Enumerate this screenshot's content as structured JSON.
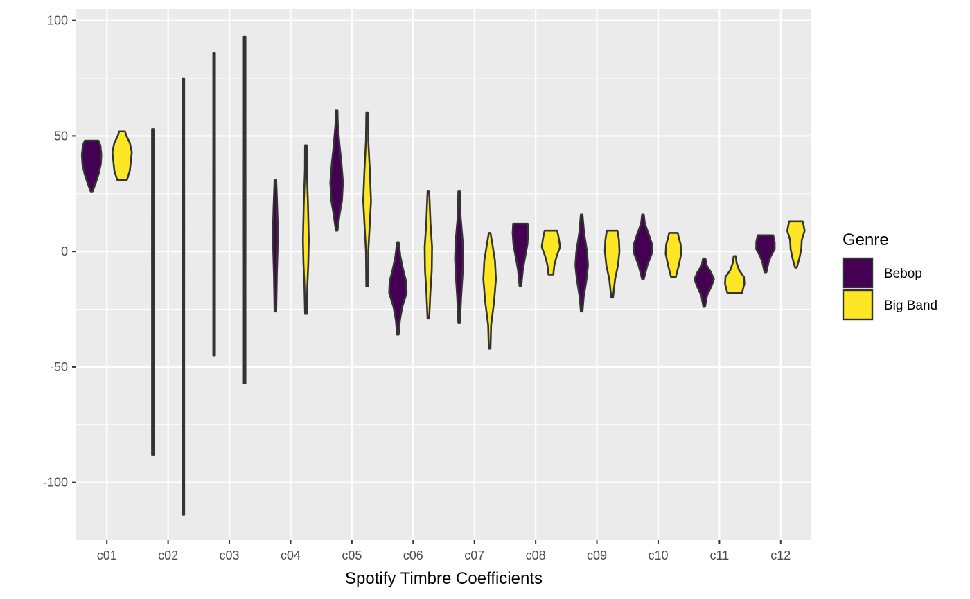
{
  "colors": {
    "panel_background": "#ebebeb",
    "grid_line": "#ffffff",
    "outline": "#333333",
    "tick_text": "#4d4d4d"
  },
  "chart_data": {
    "type": "violin",
    "title": "",
    "xlabel": "Spotify Timbre Coefficients",
    "ylabel": "",
    "ylim": [
      -125,
      105
    ],
    "y_ticks": [
      -100,
      -50,
      0,
      50,
      100
    ],
    "y_tick_labels": [
      "-100",
      "-50",
      "0",
      "50",
      "100"
    ],
    "grid": true,
    "legend_position": "right",
    "categories": [
      "c01",
      "c02",
      "c03",
      "c04",
      "c05",
      "c06",
      "c07",
      "c08",
      "c09",
      "c10",
      "c11",
      "c12"
    ],
    "legend": {
      "title": "Genre",
      "entries": [
        {
          "label": "Bebop",
          "color": "#440154"
        },
        {
          "label": "Big Band",
          "color": "#fde725"
        }
      ]
    },
    "series": [
      {
        "name": "Bebop",
        "color": "#440154",
        "violins": [
          {
            "category": "c01",
            "profile": [
              [
                26,
                0.1
              ],
              [
                30,
                0.45
              ],
              [
                34,
                0.75
              ],
              [
                38,
                0.95
              ],
              [
                42,
                1.0
              ],
              [
                46,
                0.9
              ],
              [
                48,
                0.7
              ]
            ]
          },
          {
            "category": "c02",
            "profile": [
              [
                -88,
                0.05
              ],
              [
                -50,
                0.07
              ],
              [
                -10,
                0.08
              ],
              [
                10,
                0.09
              ],
              [
                30,
                0.07
              ],
              [
                53,
                0.05
              ]
            ]
          },
          {
            "category": "c03",
            "profile": [
              [
                -45,
                0.05
              ],
              [
                -10,
                0.07
              ],
              [
                20,
                0.09
              ],
              [
                50,
                0.08
              ],
              [
                86,
                0.05
              ]
            ]
          },
          {
            "category": "c04",
            "profile": [
              [
                -26,
                0.05
              ],
              [
                -10,
                0.15
              ],
              [
                0,
                0.22
              ],
              [
                10,
                0.25
              ],
              [
                20,
                0.18
              ],
              [
                31,
                0.06
              ]
            ]
          },
          {
            "category": "c05",
            "profile": [
              [
                9,
                0.08
              ],
              [
                16,
                0.3
              ],
              [
                22,
                0.55
              ],
              [
                30,
                0.65
              ],
              [
                38,
                0.5
              ],
              [
                46,
                0.3
              ],
              [
                55,
                0.12
              ],
              [
                61,
                0.05
              ]
            ]
          },
          {
            "category": "c06",
            "profile": [
              [
                -36,
                0.08
              ],
              [
                -30,
                0.2
              ],
              [
                -24,
                0.45
              ],
              [
                -18,
                0.9
              ],
              [
                -13,
                0.85
              ],
              [
                -8,
                0.55
              ],
              [
                -2,
                0.25
              ],
              [
                4,
                0.08
              ]
            ]
          },
          {
            "category": "c07",
            "profile": [
              [
                -31,
                0.06
              ],
              [
                -20,
                0.2
              ],
              [
                -10,
                0.35
              ],
              [
                -3,
                0.42
              ],
              [
                5,
                0.35
              ],
              [
                15,
                0.15
              ],
              [
                26,
                0.05
              ]
            ]
          },
          {
            "category": "c08",
            "profile": [
              [
                -15,
                0.06
              ],
              [
                -8,
                0.25
              ],
              [
                -2,
                0.5
              ],
              [
                3,
                0.72
              ],
              [
                8,
                0.8
              ],
              [
                12,
                0.75
              ]
            ]
          },
          {
            "category": "c09",
            "profile": [
              [
                -26,
                0.08
              ],
              [
                -20,
                0.2
              ],
              [
                -12,
                0.5
              ],
              [
                -6,
                0.65
              ],
              [
                0,
                0.55
              ],
              [
                8,
                0.25
              ],
              [
                16,
                0.06
              ]
            ]
          },
          {
            "category": "c10",
            "profile": [
              [
                -12,
                0.08
              ],
              [
                -6,
                0.45
              ],
              [
                -1,
                0.9
              ],
              [
                3,
                0.95
              ],
              [
                8,
                0.55
              ],
              [
                12,
                0.2
              ],
              [
                16,
                0.05
              ]
            ]
          },
          {
            "category": "c11",
            "profile": [
              [
                -24,
                0.05
              ],
              [
                -19,
                0.3
              ],
              [
                -15,
                0.75
              ],
              [
                -12,
                1.0
              ],
              [
                -9,
                0.7
              ],
              [
                -6,
                0.25
              ],
              [
                -3,
                0.12
              ]
            ]
          },
          {
            "category": "c12",
            "profile": [
              [
                -9,
                0.1
              ],
              [
                -5,
                0.3
              ],
              [
                -2,
                0.55
              ],
              [
                1,
                0.95
              ],
              [
                4,
                0.95
              ],
              [
                7,
                0.8
              ]
            ]
          }
        ]
      },
      {
        "name": "Big Band",
        "color": "#fde725",
        "violins": [
          {
            "category": "c01",
            "profile": [
              [
                31,
                0.5
              ],
              [
                35,
                0.8
              ],
              [
                39,
                0.9
              ],
              [
                43,
                1.0
              ],
              [
                47,
                0.8
              ],
              [
                50,
                0.45
              ],
              [
                52,
                0.3
              ]
            ]
          },
          {
            "category": "c02",
            "profile": [
              [
                -114,
                0.05
              ],
              [
                -60,
                0.07
              ],
              [
                -20,
                0.08
              ],
              [
                10,
                0.09
              ],
              [
                40,
                0.07
              ],
              [
                75,
                0.05
              ]
            ]
          },
          {
            "category": "c03",
            "profile": [
              [
                -57,
                0.05
              ],
              [
                -20,
                0.07
              ],
              [
                20,
                0.09
              ],
              [
                60,
                0.08
              ],
              [
                93,
                0.05
              ]
            ]
          },
          {
            "category": "c04",
            "profile": [
              [
                -27,
                0.05
              ],
              [
                -15,
                0.15
              ],
              [
                -5,
                0.25
              ],
              [
                5,
                0.3
              ],
              [
                20,
                0.22
              ],
              [
                35,
                0.1
              ],
              [
                46,
                0.05
              ]
            ]
          },
          {
            "category": "c05",
            "profile": [
              [
                -15,
                0.05
              ],
              [
                0,
                0.12
              ],
              [
                10,
                0.25
              ],
              [
                22,
                0.4
              ],
              [
                35,
                0.28
              ],
              [
                48,
                0.12
              ],
              [
                60,
                0.05
              ]
            ]
          },
          {
            "category": "c06",
            "profile": [
              [
                -29,
                0.06
              ],
              [
                -18,
                0.2
              ],
              [
                -8,
                0.35
              ],
              [
                2,
                0.38
              ],
              [
                12,
                0.22
              ],
              [
                26,
                0.05
              ]
            ]
          },
          {
            "category": "c07",
            "profile": [
              [
                -42,
                0.05
              ],
              [
                -32,
                0.15
              ],
              [
                -22,
                0.45
              ],
              [
                -12,
                0.65
              ],
              [
                -4,
                0.55
              ],
              [
                4,
                0.25
              ],
              [
                8,
                0.08
              ]
            ]
          },
          {
            "category": "c08",
            "profile": [
              [
                -10,
                0.25
              ],
              [
                -6,
                0.35
              ],
              [
                -2,
                0.6
              ],
              [
                2,
                0.95
              ],
              [
                6,
                0.8
              ],
              [
                9,
                0.65
              ]
            ]
          },
          {
            "category": "c09",
            "profile": [
              [
                -20,
                0.08
              ],
              [
                -12,
                0.3
              ],
              [
                -6,
                0.6
              ],
              [
                0,
                0.75
              ],
              [
                5,
                0.7
              ],
              [
                9,
                0.55
              ]
            ]
          },
          {
            "category": "c10",
            "profile": [
              [
                -11,
                0.25
              ],
              [
                -6,
                0.55
              ],
              [
                -1,
                0.8
              ],
              [
                3,
                0.75
              ],
              [
                6,
                0.55
              ],
              [
                8,
                0.45
              ]
            ]
          },
          {
            "category": "c11",
            "profile": [
              [
                -18,
                0.75
              ],
              [
                -14,
                1.0
              ],
              [
                -11,
                0.95
              ],
              [
                -8,
                0.45
              ],
              [
                -5,
                0.2
              ],
              [
                -2,
                0.1
              ]
            ]
          },
          {
            "category": "c12",
            "profile": [
              [
                -7,
                0.08
              ],
              [
                -3,
                0.35
              ],
              [
                1,
                0.55
              ],
              [
                5,
                0.6
              ],
              [
                9,
                0.9
              ],
              [
                13,
                0.7
              ]
            ]
          }
        ]
      }
    ]
  }
}
